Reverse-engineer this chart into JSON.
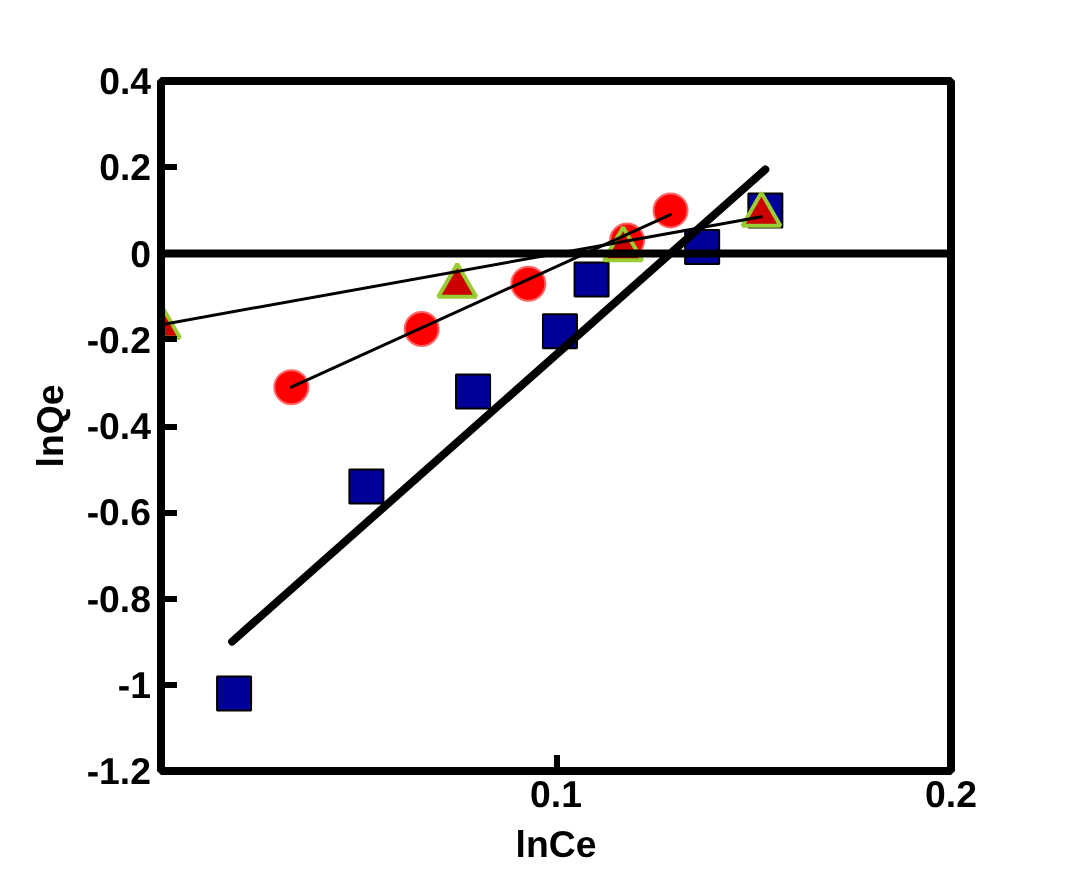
{
  "chart_data": {
    "type": "scatter",
    "xlabel": "lnCe",
    "ylabel": "lnQe",
    "xlim": [
      0,
      0.2
    ],
    "ylim": [
      -1.2,
      0.4
    ],
    "xticks": [
      0.1,
      0.2
    ],
    "ref_lines": [
      {
        "axis": "y",
        "value": 0
      }
    ],
    "yticks": [
      -1.2,
      -1,
      -0.8,
      -0.6,
      -0.4,
      -0.2,
      0,
      0.2,
      0.4
    ],
    "grid": false,
    "series": [
      {
        "marker": "square",
        "color": "#000099",
        "x": [
          0.0185,
          0.052,
          0.079,
          0.101,
          0.109,
          0.137,
          0.153
        ],
        "values": [
          -1.02,
          -0.54,
          -0.32,
          -0.18,
          -0.06,
          0.015,
          0.1
        ]
      },
      {
        "marker": "circle",
        "color": "#ff0000",
        "x": [
          0.033,
          0.066,
          0.093,
          0.118,
          0.129
        ],
        "values": [
          -0.31,
          -0.175,
          -0.07,
          0.03,
          0.1
        ]
      },
      {
        "marker": "triangle",
        "color": "#cc0000",
        "x": [
          0,
          0.075,
          0.117,
          0.152
        ],
        "values": [
          -0.17,
          -0.075,
          0.01,
          0.09
        ]
      },
      {
        "type": "line",
        "color": "#000000",
        "x": [
          0.018,
          0.153
        ],
        "values": [
          -0.9,
          0.195
        ]
      },
      {
        "type": "line",
        "color": "#000000",
        "x": [
          0.033,
          0.129
        ],
        "values": [
          -0.31,
          0.09
        ]
      },
      {
        "type": "line",
        "color": "#000000",
        "x": [
          0,
          0.152
        ],
        "values": [
          -0.165,
          0.085
        ]
      }
    ]
  }
}
